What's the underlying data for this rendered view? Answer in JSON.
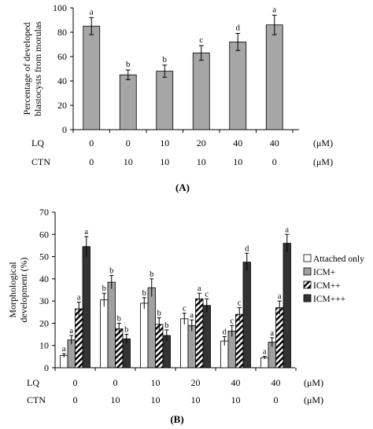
{
  "chart_data": [
    {
      "type": "bar",
      "panel_label": "(A)",
      "ylabel": [
        "Percentage of developed",
        "blastocysts from morulas"
      ],
      "ylim": [
        0,
        100
      ],
      "yticks": [
        "0",
        "20",
        "40",
        "60",
        "80",
        "100"
      ],
      "grid": false,
      "rows": [
        {
          "label": "LQ",
          "values": [
            "0",
            "0",
            "10",
            "20",
            "40",
            "40"
          ],
          "unit": "(μM)"
        },
        {
          "label": "CTN",
          "values": [
            "0",
            "10",
            "10",
            "10",
            "10",
            "0"
          ],
          "unit": "(μM)"
        }
      ],
      "values": [
        85,
        45,
        48,
        63,
        72,
        86
      ],
      "errors": [
        7,
        4,
        5,
        6,
        7,
        8
      ],
      "letters": [
        "a",
        "b",
        "b",
        "c",
        "d",
        "a"
      ],
      "bar_color": "#a6a6a6"
    },
    {
      "type": "bar",
      "panel_label": "(B)",
      "ylabel": [
        "Morphological",
        "development (%)"
      ],
      "ylim": [
        0,
        70
      ],
      "yticks": [
        "0",
        "10",
        "20",
        "30",
        "40",
        "50",
        "60",
        "70"
      ],
      "grid": false,
      "legend_position": "right",
      "rows": [
        {
          "label": "LQ",
          "values": [
            "0",
            "0",
            "10",
            "20",
            "40",
            "40"
          ],
          "unit": "(μM)"
        },
        {
          "label": "CTN",
          "values": [
            "0",
            "10",
            "10",
            "10",
            "10",
            "0"
          ],
          "unit": "(μM)"
        }
      ],
      "series": [
        {
          "name": "Attached only",
          "fill": "white",
          "values": [
            5.5,
            30.5,
            29,
            22,
            12,
            4.5
          ],
          "errors": [
            0.8,
            3,
            2.5,
            2.5,
            2,
            0.6
          ],
          "letters": [
            "a",
            "b",
            "b",
            "c",
            "d",
            "a"
          ]
        },
        {
          "name": "ICM+",
          "fill": "gray",
          "values": [
            12.5,
            38.5,
            36,
            19,
            16.5,
            11.5
          ],
          "errors": [
            2,
            3,
            4,
            2.5,
            2.5,
            2
          ],
          "letters": [
            "a",
            "b",
            "b",
            "a",
            "c",
            "a"
          ]
        },
        {
          "name": "ICM++",
          "fill": "hatch",
          "values": [
            26.5,
            17.5,
            19.5,
            31,
            24,
            27
          ],
          "errors": [
            3,
            2.5,
            3,
            2.5,
            3,
            3
          ],
          "letters": [
            "a",
            "b",
            "b",
            "a",
            "c",
            "a"
          ]
        },
        {
          "name": "ICM+++",
          "fill": "dark",
          "values": [
            54.5,
            13,
            14.5,
            28,
            47.5,
            56
          ],
          "errors": [
            4.5,
            2,
            2.5,
            3,
            4,
            4
          ],
          "letters": [
            "a",
            "b",
            "b",
            "c",
            "d",
            "a"
          ]
        }
      ],
      "colors": {
        "white": "#ffffff",
        "gray": "#a0a0a0",
        "dark": "#333333",
        "stroke": "#000000"
      }
    }
  ]
}
